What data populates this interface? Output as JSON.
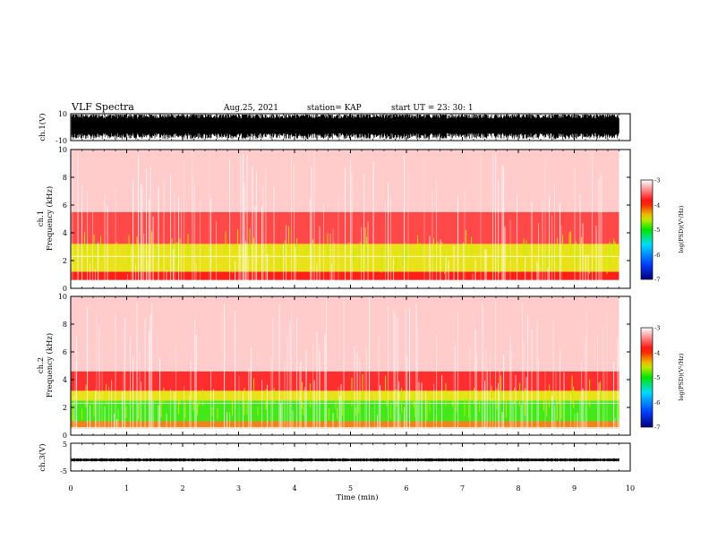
{
  "header": {
    "title": "VLF Spectra",
    "date": "Aug.25, 2021",
    "station": "station= KAP",
    "start": "start  UT  =   23: 30: 1"
  },
  "chart_data": [
    {
      "type": "line",
      "ylabel": "ch.1(V)",
      "ylim": [
        -10,
        10
      ],
      "yticks": [
        "10",
        "-10"
      ],
      "description": "ch.1 waveform, dense noise filling the panel",
      "color": "#000000"
    },
    {
      "type": "heatmap",
      "ylabel": "ch.1\nFrequency (kHz)",
      "ylim": [
        0,
        10
      ],
      "yticks": [
        "0",
        "2",
        "4",
        "6",
        "8",
        "10"
      ],
      "colorbar": {
        "label": "log(PSD)(V²/Hz)",
        "range": [
          -7,
          -3
        ],
        "ticks": [
          "-3",
          "-4",
          "-5",
          "-6",
          "-7"
        ]
      },
      "bands": [
        {
          "from_khz": 0.6,
          "to_khz": 1.2,
          "level": -3.9
        },
        {
          "from_khz": 1.2,
          "to_khz": 3.2,
          "level": -4.5
        },
        {
          "from_khz": 3.2,
          "to_khz": 5.5,
          "level": -3.7
        },
        {
          "from_khz": 5.5,
          "to_khz": 10,
          "level": -3.2
        }
      ]
    },
    {
      "type": "heatmap",
      "ylabel": "ch.2\nFrequency (kHz)",
      "ylim": [
        0,
        10
      ],
      "yticks": [
        "0",
        "2",
        "4",
        "6",
        "8",
        "10"
      ],
      "colorbar": {
        "label": "log(PSD)(V²/Hz)",
        "range": [
          -7,
          -3
        ],
        "ticks": [
          "-3",
          "-4",
          "-5",
          "-6",
          "-7"
        ]
      },
      "bands": [
        {
          "from_khz": 0.5,
          "to_khz": 1.0,
          "level": -4.2
        },
        {
          "from_khz": 1.0,
          "to_khz": 2.5,
          "level": -4.9
        },
        {
          "from_khz": 2.5,
          "to_khz": 3.2,
          "level": -4.5
        },
        {
          "from_khz": 3.2,
          "to_khz": 4.6,
          "level": -3.8
        },
        {
          "from_khz": 4.6,
          "to_khz": 10,
          "level": -3.2
        }
      ]
    },
    {
      "type": "line",
      "ylabel": "ch.3(V)",
      "ylim": [
        -5,
        5
      ],
      "yticks": [
        "5",
        "-5"
      ],
      "description": "ch.3 waveform, narrow band near -1 V",
      "color": "#000000"
    }
  ],
  "time_axis": {
    "label": "Time (min)",
    "xlim": [
      0,
      10
    ],
    "ticks": [
      "0",
      "1",
      "2",
      "3",
      "4",
      "5",
      "6",
      "7",
      "8",
      "9",
      "10"
    ],
    "data_end_min": 9.8
  }
}
